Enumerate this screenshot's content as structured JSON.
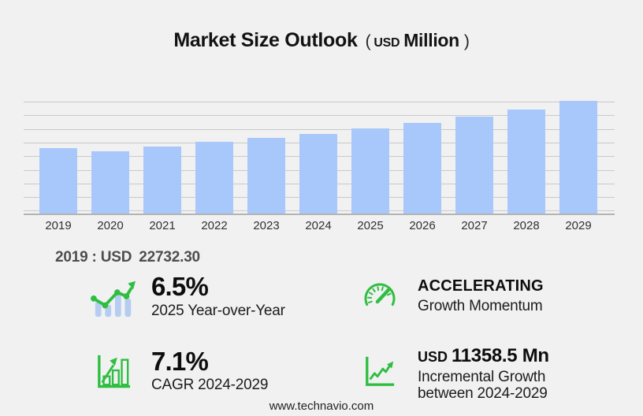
{
  "title": {
    "main": "Market Size Outlook",
    "open": "(",
    "currency": "USD",
    "unit": "Million",
    "close": ")"
  },
  "chart_data": {
    "type": "bar",
    "title": "Market Size Outlook (USD Million)",
    "ylabel": "USD Million",
    "categories": [
      "2019",
      "2020",
      "2021",
      "2022",
      "2023",
      "2024",
      "2025",
      "2026",
      "2027",
      "2028",
      "2029"
    ],
    "values": [
      22732.3,
      21720,
      23170,
      24800,
      26170,
      27737,
      29540,
      31470,
      33740,
      36000,
      39095.5
    ],
    "ylim": [
      0,
      40440
    ],
    "grid": "horizontal",
    "legend": "none"
  },
  "base_year": {
    "prefix": "2019 : USD",
    "value": "22732.30"
  },
  "stats": {
    "yoy": {
      "value": "6.5%",
      "label": "2025 Year-over-Year",
      "icon": "trend-bars-icon"
    },
    "momentum": {
      "value": "ACCELERATING",
      "label": "Growth Momentum",
      "icon": "speedometer-icon"
    },
    "cagr": {
      "value": "7.1%",
      "label": "CAGR 2024-2029",
      "icon": "bar-chart-growth-icon"
    },
    "incremental": {
      "value_prefix": "USD",
      "value": "11358.5 Mn",
      "label": "Incremental Growth between 2024-2029",
      "icon": "line-chart-growth-icon"
    }
  },
  "footer": {
    "url": "www.technavio.com"
  },
  "colors": {
    "background": "#f1f1f2",
    "bar_blue": "#a8c7fa",
    "icon_bar_blue": "#b5cdf1",
    "accent_green": "#2fbe41",
    "gridline": "#c9c9c9"
  }
}
